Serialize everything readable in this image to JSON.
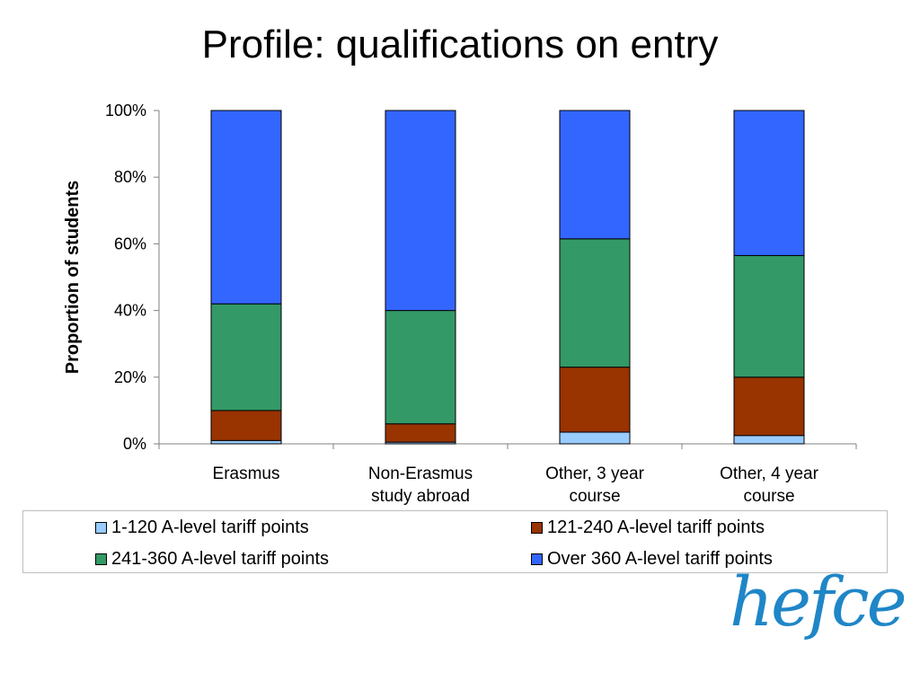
{
  "page": {
    "title": "Profile: qualifications on entry"
  },
  "brand": {
    "logo": "hefce",
    "logo_color": "#1f86c7"
  },
  "chart_data": {
    "type": "bar",
    "stacked": true,
    "percent_stacked": true,
    "title": "Profile: qualifications on entry",
    "ylabel": "Proportion of students",
    "xlabel": "",
    "ylim": [
      0,
      100
    ],
    "yticks": [
      "0%",
      "20%",
      "40%",
      "60%",
      "80%",
      "100%"
    ],
    "categories": [
      [
        "Erasmus"
      ],
      [
        "Non-Erasmus",
        "study abroad"
      ],
      [
        "Other, 3 year",
        "course"
      ],
      [
        "Other, 4 year",
        "course"
      ]
    ],
    "series": [
      {
        "name": "1-120 A-level tariff points",
        "color": "#99ccff",
        "values": [
          1,
          0.5,
          3.5,
          2.5
        ]
      },
      {
        "name": "121-240 A-level tariff points",
        "color": "#993300",
        "values": [
          9,
          5.5,
          19.5,
          17.5
        ]
      },
      {
        "name": "241-360 A-level tariff points",
        "color": "#339966",
        "values": [
          32,
          34,
          38.5,
          36.5
        ]
      },
      {
        "name": "Over 360 A-level tariff points",
        "color": "#3366ff",
        "values": [
          58,
          60,
          38.5,
          43.5
        ]
      }
    ],
    "legend_position": "bottom",
    "grid": false
  }
}
